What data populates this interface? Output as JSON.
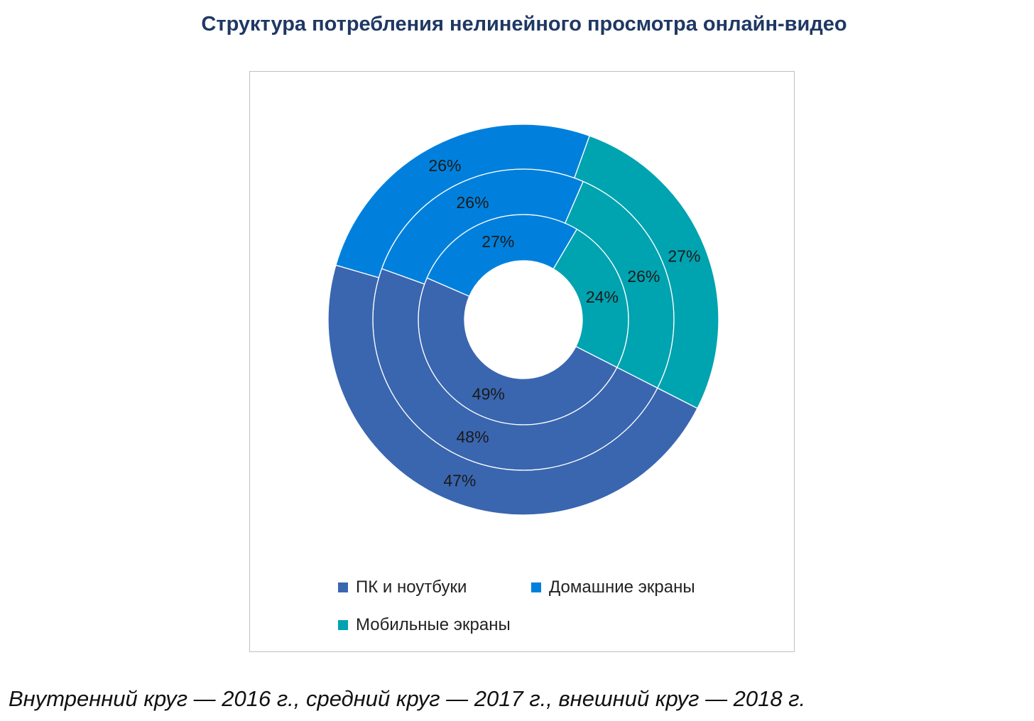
{
  "chart_data": {
    "type": "doughnut",
    "title": "Структура потребления нелинейного просмотра онлайн-видео",
    "categories": [
      "ПК и ноутбуки",
      "Домашние экраны",
      "Мобильные экраны"
    ],
    "colors": [
      "#3A66B0",
      "#0080DC",
      "#00A3B0"
    ],
    "first_slice_angle_deg": 117,
    "series": [
      {
        "name": "2016",
        "ring": "inner",
        "values": [
          49,
          27,
          24
        ],
        "labels": [
          "49%",
          "27%",
          "24%"
        ]
      },
      {
        "name": "2017",
        "ring": "middle",
        "values": [
          48,
          26,
          26
        ],
        "labels": [
          "48%",
          "26%",
          "26%"
        ]
      },
      {
        "name": "2018",
        "ring": "outer",
        "values": [
          47,
          26,
          27
        ],
        "labels": [
          "47%",
          "26%",
          "27%"
        ]
      }
    ],
    "legend_position": "bottom"
  },
  "caption": "Внутренний круг — 2016 г., средний круг — 2017 г., внешний круг — 2018 г."
}
